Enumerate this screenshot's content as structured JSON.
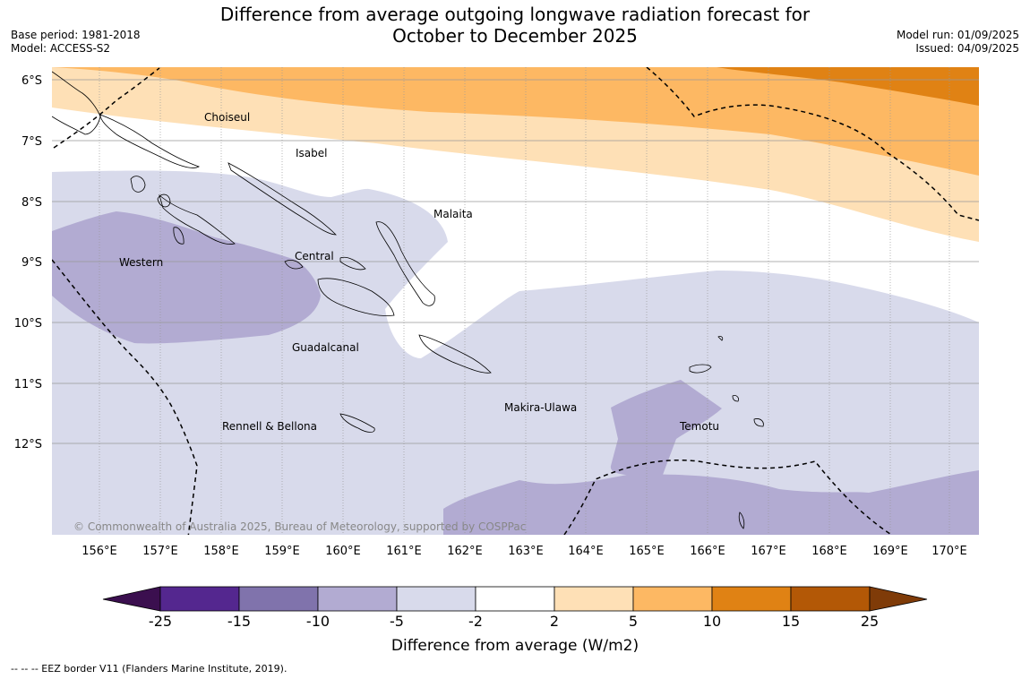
{
  "title_line1": "Difference from average outgoing longwave radiation forecast for",
  "title_line2": "October to December 2025",
  "base_period": "Base period: 1981-2018",
  "model": "Model: ACCESS-S2",
  "model_run": "Model run: 01/09/2025",
  "issued": "Issued: 04/09/2025",
  "lat_labels": [
    "6°S",
    "7°S",
    "8°S",
    "9°S",
    "10°S",
    "11°S",
    "12°S"
  ],
  "lon_labels": [
    "156°E",
    "157°E",
    "158°E",
    "159°E",
    "160°E",
    "161°E",
    "162°E",
    "163°E",
    "164°E",
    "165°E",
    "166°E",
    "167°E",
    "168°E",
    "169°E",
    "170°E"
  ],
  "provinces": [
    "Choiseul",
    "Isabel",
    "Malaita",
    "Western",
    "Central",
    "Guadalcanal",
    "Makira-Ulawa",
    "Temotu",
    "Rennell & Bellona"
  ],
  "copyright": "© Commonwealth of Australia 2025, Bureau of Meteorology, supported by COSPPac",
  "colorbar": {
    "ticks": [
      "-25",
      "-15",
      "-10",
      "-5",
      "-2",
      "2",
      "5",
      "10",
      "15",
      "25"
    ],
    "colors": [
      "#3b0f4f",
      "#54278f",
      "#8073ac",
      "#b2abd2",
      "#d8daeb",
      "#ffffff",
      "#fee0b6",
      "#fdb863",
      "#e08214",
      "#b35806",
      "#7f3b08"
    ],
    "label": "Difference from average (W/m2)"
  },
  "footer": "--  --  -- EEZ border V11 (Flanders Marine Institute, 2019)."
}
